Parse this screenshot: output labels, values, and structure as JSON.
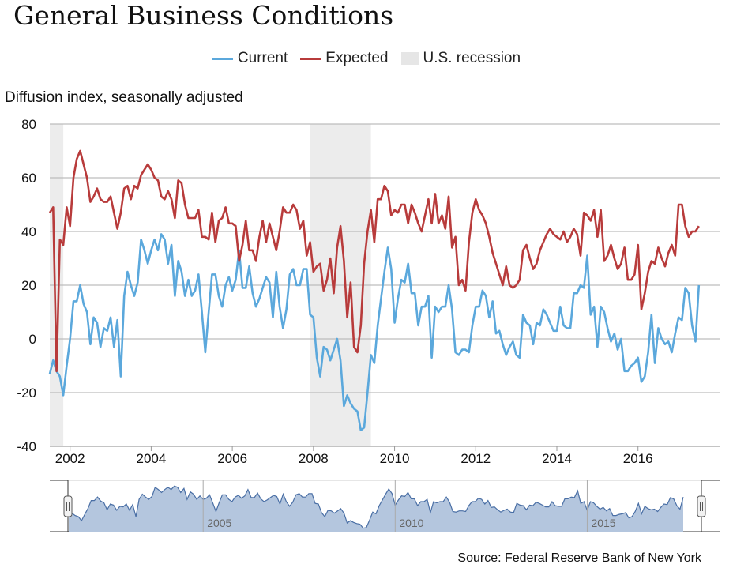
{
  "chart_data": {
    "type": "line",
    "title": "General Business Conditions",
    "ylabel": "Diffusion index, seasonally adjusted",
    "ylim": [
      -40,
      80
    ],
    "yticks": [
      "80",
      "60",
      "40",
      "20",
      "0",
      "-20",
      "-40"
    ],
    "xticks": [
      "2002",
      "2004",
      "2006",
      "2008",
      "2010",
      "2012",
      "2014",
      "2016"
    ],
    "navigator_ticks": [
      "2005",
      "2010",
      "2015"
    ],
    "grid": true,
    "legend_placement": "top-center",
    "legend": {
      "current": "Current",
      "expected": "Expected",
      "recession": "U.S. recession"
    },
    "colors": {
      "current": "#5ba8dc",
      "expected": "#b83b3b",
      "recession": "#ececec",
      "navigator_fill": "#b4c6de",
      "navigator_line": "#4a6fa5"
    },
    "recessions": [
      [
        "2001-03",
        "2001-11"
      ],
      [
        "2007-12",
        "2009-06"
      ]
    ],
    "x": [
      "2001-07",
      "2001-08",
      "2001-09",
      "2001-10",
      "2001-11",
      "2001-12",
      "2002-01",
      "2002-02",
      "2002-03",
      "2002-04",
      "2002-05",
      "2002-06",
      "2002-07",
      "2002-08",
      "2002-09",
      "2002-10",
      "2002-11",
      "2002-12",
      "2003-01",
      "2003-02",
      "2003-03",
      "2003-04",
      "2003-05",
      "2003-06",
      "2003-07",
      "2003-08",
      "2003-09",
      "2003-10",
      "2003-11",
      "2003-12",
      "2004-01",
      "2004-02",
      "2004-03",
      "2004-04",
      "2004-05",
      "2004-06",
      "2004-07",
      "2004-08",
      "2004-09",
      "2004-10",
      "2004-11",
      "2004-12",
      "2005-01",
      "2005-02",
      "2005-03",
      "2005-04",
      "2005-05",
      "2005-06",
      "2005-07",
      "2005-08",
      "2005-09",
      "2005-10",
      "2005-11",
      "2005-12",
      "2006-01",
      "2006-02",
      "2006-03",
      "2006-04",
      "2006-05",
      "2006-06",
      "2006-07",
      "2006-08",
      "2006-09",
      "2006-10",
      "2006-11",
      "2006-12",
      "2007-01",
      "2007-02",
      "2007-03",
      "2007-04",
      "2007-05",
      "2007-06",
      "2007-07",
      "2007-08",
      "2007-09",
      "2007-10",
      "2007-11",
      "2007-12",
      "2008-01",
      "2008-02",
      "2008-03",
      "2008-04",
      "2008-05",
      "2008-06",
      "2008-07",
      "2008-08",
      "2008-09",
      "2008-10",
      "2008-11",
      "2008-12",
      "2009-01",
      "2009-02",
      "2009-03",
      "2009-04",
      "2009-05",
      "2009-06",
      "2009-07",
      "2009-08",
      "2009-09",
      "2009-10",
      "2009-11",
      "2009-12",
      "2010-01",
      "2010-02",
      "2010-03",
      "2010-04",
      "2010-05",
      "2010-06",
      "2010-07",
      "2010-08",
      "2010-09",
      "2010-10",
      "2010-11",
      "2010-12",
      "2011-01",
      "2011-02",
      "2011-03",
      "2011-04",
      "2011-05",
      "2011-06",
      "2011-07",
      "2011-08",
      "2011-09",
      "2011-10",
      "2011-11",
      "2011-12",
      "2012-01",
      "2012-02",
      "2012-03",
      "2012-04",
      "2012-05",
      "2012-06",
      "2012-07",
      "2012-08",
      "2012-09",
      "2012-10",
      "2012-11",
      "2012-12",
      "2013-01",
      "2013-02",
      "2013-03",
      "2013-04",
      "2013-05",
      "2013-06",
      "2013-07",
      "2013-08",
      "2013-09",
      "2013-10",
      "2013-11",
      "2013-12",
      "2014-01",
      "2014-02",
      "2014-03",
      "2014-04",
      "2014-05",
      "2014-06",
      "2014-07",
      "2014-08",
      "2014-09",
      "2014-10",
      "2014-11",
      "2014-12",
      "2015-01",
      "2015-02",
      "2015-03",
      "2015-04",
      "2015-05",
      "2015-06",
      "2015-07",
      "2015-08",
      "2015-09",
      "2015-10",
      "2015-11",
      "2015-12",
      "2016-01",
      "2016-02",
      "2016-03",
      "2016-04",
      "2016-05",
      "2016-06",
      "2016-07",
      "2016-08",
      "2016-09",
      "2016-10",
      "2016-11",
      "2016-12",
      "2017-01",
      "2017-02",
      "2017-03",
      "2017-04",
      "2017-05",
      "2017-06",
      "2017-07"
    ],
    "series": [
      {
        "name": "Current",
        "values": [
          -13,
          -8,
          -12,
          -14,
          -21,
          -10,
          0,
          14,
          14,
          20,
          13,
          10,
          -2,
          8,
          6,
          -3,
          4,
          3,
          8,
          -3,
          7,
          -14,
          16,
          25,
          20,
          16,
          21,
          37,
          33,
          28,
          33,
          37,
          33,
          39,
          37,
          28,
          35,
          16,
          29,
          25,
          16,
          22,
          16,
          18,
          24,
          10,
          -5,
          10,
          24,
          24,
          16,
          12,
          20,
          23,
          18,
          22,
          33,
          19,
          19,
          27,
          17,
          12,
          15,
          19,
          23,
          21,
          8,
          25,
          12,
          4,
          11,
          24,
          26,
          20,
          20,
          26,
          26,
          9,
          8,
          -7,
          -14,
          -3,
          -4,
          -8,
          -4,
          0,
          -8,
          -25,
          -21,
          -24,
          -26,
          -27,
          -34,
          -33,
          -20,
          -6,
          -9,
          5,
          15,
          25,
          34,
          26,
          6,
          15,
          22,
          21,
          28,
          17,
          17,
          5,
          12,
          12,
          16,
          -7,
          12,
          10,
          12,
          12,
          20,
          11,
          -5,
          -6,
          -4,
          -4,
          -5,
          5,
          12,
          12,
          18,
          16,
          8,
          14,
          2,
          3,
          -2,
          -6,
          -3,
          -1,
          -6,
          -7,
          9,
          6,
          5,
          -2,
          6,
          5,
          11,
          9,
          6,
          3,
          3,
          12,
          5,
          4,
          4,
          17,
          17,
          20,
          19,
          31,
          9,
          12,
          -3,
          12,
          10,
          4,
          -1,
          2,
          -4,
          0,
          -12,
          -12,
          -10,
          -9,
          -7,
          -16,
          -14,
          -5,
          9,
          -9,
          4,
          0,
          -2,
          -1,
          -5,
          2,
          8,
          7,
          19,
          17,
          5,
          -1,
          20
        ]
      },
      {
        "name": "Expected",
        "values": [
          47,
          49,
          -12,
          37,
          35,
          49,
          42,
          60,
          67,
          70,
          65,
          60,
          51,
          53,
          56,
          52,
          51,
          51,
          53,
          47,
          41,
          47,
          56,
          57,
          52,
          57,
          56,
          61,
          63,
          65,
          63,
          60,
          59,
          53,
          52,
          55,
          52,
          45,
          59,
          58,
          50,
          45,
          45,
          45,
          48,
          38,
          38,
          37,
          47,
          36,
          44,
          45,
          49,
          43,
          43,
          42,
          29,
          35,
          44,
          33,
          33,
          29,
          38,
          44,
          36,
          43,
          38,
          33,
          40,
          49,
          47,
          47,
          50,
          48,
          41,
          44,
          31,
          36,
          25,
          27,
          28,
          18,
          22,
          30,
          17,
          34,
          42,
          29,
          8,
          21,
          -3,
          -5,
          5,
          28,
          40,
          48,
          36,
          52,
          52,
          57,
          55,
          46,
          48,
          47,
          50,
          50,
          43,
          50,
          47,
          43,
          40,
          46,
          52,
          43,
          54,
          43,
          46,
          41,
          53,
          34,
          38,
          20,
          22,
          18,
          36,
          47,
          52,
          48,
          46,
          43,
          38,
          32,
          28,
          24,
          20,
          27,
          20,
          19,
          20,
          22,
          33,
          35,
          30,
          26,
          28,
          33,
          36,
          39,
          41,
          39,
          38,
          37,
          40,
          36,
          38,
          41,
          39,
          31,
          47,
          46,
          44,
          48,
          38,
          48,
          29,
          31,
          35,
          30,
          26,
          28,
          34,
          22,
          22,
          24,
          35,
          11,
          17,
          25,
          29,
          28,
          34,
          30,
          27,
          32,
          35,
          31,
          50,
          50,
          42,
          38,
          40,
          40,
          42
        ]
      }
    ]
  },
  "source": "Source: Federal Reserve Bank of New York"
}
